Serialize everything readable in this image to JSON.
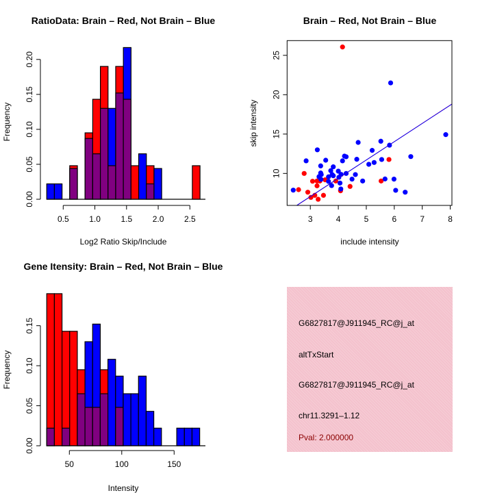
{
  "colors": {
    "brain": "#ff0000",
    "not_brain": "#0000ff",
    "overlap": "#800080",
    "panel": "#f4c2cd",
    "pval_text": "#8b0000"
  },
  "chart_data": [
    {
      "type": "bar",
      "subtype": "overlaid-histogram",
      "title": "RatioData: Brain – Red, Not Brain – Blue",
      "xlabel": "Log2 Ratio Skip/Include",
      "ylabel": "Frequency",
      "bin_start": 0.24,
      "bin_width": 0.121,
      "xticks": [
        0.5,
        1.0,
        1.5,
        2.0,
        2.5
      ],
      "xtick_labels": [
        "0.5",
        "1.0",
        "1.5",
        "2.0",
        "2.5"
      ],
      "yticks": [
        0,
        0.05,
        0.1,
        0.15,
        0.2
      ],
      "ytick_labels": [
        "0.00",
        "0.05",
        "0.10",
        "0.15",
        "0.20"
      ],
      "series": [
        {
          "name": "Brain",
          "color": "red",
          "values": [
            0,
            0,
            0,
            0.048,
            0,
            0.095,
            0.143,
            0.19,
            0.048,
            0.19,
            0.143,
            0.048,
            0,
            0.048,
            0,
            0,
            0,
            0,
            0,
            0.048
          ]
        },
        {
          "name": "Not Brain",
          "color": "blue",
          "values": [
            0.022,
            0.022,
            0,
            0.044,
            0,
            0.087,
            0.065,
            0.13,
            0.13,
            0.152,
            0.217,
            0,
            0.065,
            0.022,
            0.044,
            0,
            0,
            0,
            0,
            0
          ]
        }
      ]
    },
    {
      "type": "scatter",
      "title": "Brain – Red, Not Brain – Blue",
      "xlabel": "include intensity",
      "ylabel": "skip intensity",
      "xlim": [
        2.17,
        8.06
      ],
      "ylim": [
        5.94,
        26.87
      ],
      "xticks": [
        3,
        4,
        5,
        6,
        7,
        8
      ],
      "xtick_labels": [
        "3",
        "4",
        "5",
        "6",
        "7",
        "8"
      ],
      "yticks": [
        10,
        15,
        20,
        25
      ],
      "ytick_labels": [
        "10",
        "15",
        "20",
        "25"
      ],
      "series": [
        {
          "name": "Brain",
          "color": "red",
          "points": [
            [
              4.15,
              26.06
            ],
            [
              2.78,
              10.0
            ],
            [
              2.58,
              7.94
            ],
            [
              2.91,
              7.62
            ],
            [
              3.08,
              9.01
            ],
            [
              3.24,
              8.43
            ],
            [
              3.24,
              9.04
            ],
            [
              3.34,
              9.04
            ],
            [
              3.53,
              9.19
            ],
            [
              3.02,
              6.96
            ],
            [
              3.16,
              7.22
            ],
            [
              3.28,
              6.72
            ],
            [
              3.47,
              7.22
            ],
            [
              3.91,
              9.04
            ],
            [
              4.08,
              7.8
            ],
            [
              4.42,
              8.35
            ],
            [
              5.53,
              9.04
            ],
            [
              5.81,
              11.77
            ]
          ]
        },
        {
          "name": "Not Brain",
          "color": "blue",
          "points": [
            [
              2.39,
              7.88
            ],
            [
              2.85,
              11.6
            ],
            [
              3.25,
              13.0
            ],
            [
              3.37,
              10.96
            ],
            [
              3.55,
              11.68
            ],
            [
              3.37,
              10.06
            ],
            [
              3.39,
              9.86
            ],
            [
              3.31,
              9.59
            ],
            [
              3.38,
              9.25
            ],
            [
              3.65,
              9.57
            ],
            [
              3.65,
              8.99
            ],
            [
              3.76,
              8.46
            ],
            [
              3.73,
              10.35
            ],
            [
              3.82,
              10.84
            ],
            [
              3.78,
              9.86
            ],
            [
              3.82,
              9.71
            ],
            [
              4.0,
              10.29
            ],
            [
              4.02,
              9.51
            ],
            [
              4.06,
              8.78
            ],
            [
              4.1,
              9.88
            ],
            [
              4.09,
              8.03
            ],
            [
              4.15,
              11.6
            ],
            [
              4.22,
              12.2
            ],
            [
              4.28,
              12.12
            ],
            [
              4.28,
              10.0
            ],
            [
              4.49,
              9.28
            ],
            [
              4.61,
              9.86
            ],
            [
              4.66,
              11.8
            ],
            [
              4.71,
              13.94
            ],
            [
              4.87,
              9.04
            ],
            [
              5.09,
              11.16
            ],
            [
              5.21,
              12.93
            ],
            [
              5.28,
              11.39
            ],
            [
              5.52,
              14.09
            ],
            [
              5.55,
              11.77
            ],
            [
              5.83,
              13.59
            ],
            [
              5.87,
              21.5
            ],
            [
              5.67,
              9.3
            ],
            [
              5.99,
              9.28
            ],
            [
              6.05,
              7.86
            ],
            [
              6.39,
              7.62
            ],
            [
              6.59,
              12.14
            ],
            [
              7.84,
              14.93
            ]
          ]
        }
      ],
      "fit_lines": [
        {
          "color": "red",
          "intercept": 0.08,
          "slope": 2.325
        },
        {
          "color": "blue",
          "intercept": 0.11,
          "slope": 2.32
        }
      ]
    },
    {
      "type": "bar",
      "subtype": "overlaid-histogram",
      "title": "Gene Itensity: Brain – Red, Not Brain – Blue",
      "xlabel": "Intensity",
      "ylabel": "Frequency",
      "bin_start": 28.4,
      "bin_width": 7.3,
      "xticks": [
        50,
        100,
        150
      ],
      "xtick_labels": [
        "50",
        "100",
        "150"
      ],
      "yticks": [
        0,
        0.05,
        0.1,
        0.15
      ],
      "ytick_labels": [
        "0.00",
        "0.05",
        "0.10",
        "0.15"
      ],
      "series": [
        {
          "name": "Brain",
          "color": "red",
          "values": [
            0.19,
            0.19,
            0.143,
            0.143,
            0.095,
            0.048,
            0.048,
            0.095,
            0,
            0.048,
            0,
            0,
            0,
            0,
            0,
            0,
            0,
            0,
            0,
            0
          ]
        },
        {
          "name": "Not Brain",
          "color": "blue",
          "values": [
            0.022,
            0,
            0.022,
            0,
            0.065,
            0.13,
            0.152,
            0.065,
            0.108,
            0.087,
            0.065,
            0.065,
            0.087,
            0.043,
            0.022,
            0,
            0,
            0.022,
            0.022,
            0.022
          ]
        }
      ]
    }
  ],
  "info_panel": {
    "lines": [
      "G6827817@J911945_RC@j_at",
      "altTxStart",
      "G6827817@J911945_RC@j_at",
      "chr11.3291–1.12"
    ],
    "pval": "Pval: 2.000000"
  }
}
